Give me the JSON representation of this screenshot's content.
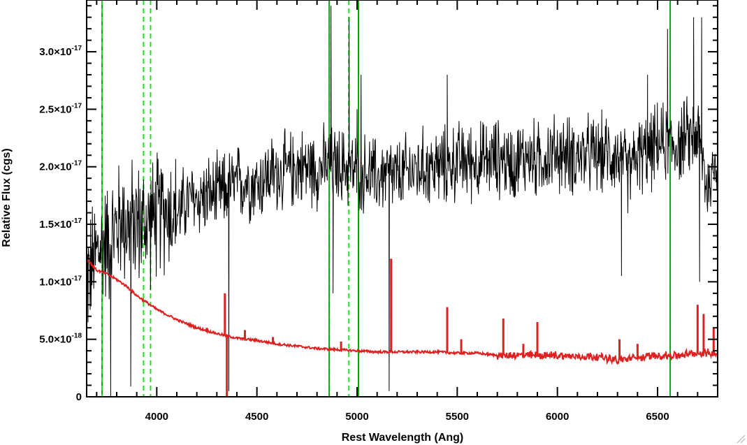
{
  "chart_data": {
    "type": "line",
    "xlabel": "Rest Wavelength (Ang)",
    "ylabel": "Relative Flux (cgs)",
    "xlim": [
      3650,
      6800
    ],
    "ylim": [
      0,
      3.45e-17
    ],
    "x_ticks": [
      {
        "value": 4000,
        "label": "4000"
      },
      {
        "value": 4500,
        "label": "4500"
      },
      {
        "value": 5000,
        "label": "5000"
      },
      {
        "value": 5500,
        "label": "5500"
      },
      {
        "value": 6000,
        "label": "6000"
      },
      {
        "value": 6500,
        "label": "6500"
      }
    ],
    "y_ticks": [
      {
        "value": 0,
        "mantissa": "0",
        "exponent": ""
      },
      {
        "value": 5e-18,
        "mantissa": "5.0×10",
        "exponent": "-18"
      },
      {
        "value": 1e-17,
        "mantissa": "1.0×10",
        "exponent": "-17"
      },
      {
        "value": 1.5e-17,
        "mantissa": "1.5×10",
        "exponent": "-17"
      },
      {
        "value": 2e-17,
        "mantissa": "2.0×10",
        "exponent": "-17"
      },
      {
        "value": 2.5e-17,
        "mantissa": "2.5×10",
        "exponent": "-17"
      },
      {
        "value": 3e-17,
        "mantissa": "3.0×10",
        "exponent": "-17"
      }
    ],
    "x_minor_step": 100,
    "y_minor_step": 1e-18,
    "grid": false,
    "legend": "none",
    "series": [
      {
        "style": "observed",
        "color": "#000000",
        "x": [
          3660,
          3700,
          3740,
          3780,
          3820,
          3860,
          3900,
          3940,
          3980,
          4020,
          4060,
          4100,
          4150,
          4200,
          4250,
          4300,
          4350,
          4400,
          4450,
          4500,
          4550,
          4600,
          4650,
          4700,
          4750,
          4800,
          4850,
          4900,
          4950,
          5000,
          5050,
          5100,
          5150,
          5200,
          5250,
          5300,
          5350,
          5400,
          5450,
          5500,
          5550,
          5600,
          5650,
          5700,
          5750,
          5800,
          5850,
          5900,
          5950,
          6000,
          6050,
          6100,
          6150,
          6200,
          6250,
          6300,
          6350,
          6400,
          6450,
          6500,
          6550,
          6600,
          6650,
          6700,
          6750,
          6800
        ],
        "y": [
          1.05e-17,
          1.25e-17,
          1.35e-17,
          1.4e-17,
          1.55e-17,
          1.5e-17,
          1.52e-17,
          1.5e-17,
          1.55e-17,
          1.6e-17,
          1.65e-17,
          1.58e-17,
          1.7e-17,
          1.72e-17,
          1.75e-17,
          1.75e-17,
          1.8e-17,
          1.85e-17,
          1.88e-17,
          1.85e-17,
          1.92e-17,
          1.95e-17,
          1.95e-17,
          2e-17,
          2e-17,
          1.98e-17,
          2.02e-17,
          2e-17,
          2e-17,
          1.95e-17,
          1.95e-17,
          1.9e-17,
          1.95e-17,
          1.9e-17,
          1.95e-17,
          1.98e-17,
          2e-17,
          2e-17,
          2e-17,
          2.05e-17,
          2.05e-17,
          2.05e-17,
          2.05e-17,
          2.08e-17,
          2.05e-17,
          2.05e-17,
          2.1e-17,
          2.05e-17,
          2.1e-17,
          2.12e-17,
          2.1e-17,
          2.1e-17,
          2.1e-17,
          2.1e-17,
          2.12e-17,
          2.1e-17,
          1.95e-17,
          2.1e-17,
          2.1e-17,
          2.2e-17,
          2.2e-17,
          2.2e-17,
          2.25e-17,
          2.3e-17,
          1.8e-17,
          2.1e-17
        ],
        "noise_amplitude": 3e-18,
        "spikes": [
          {
            "x": 3770,
            "y": -8e-19
          },
          {
            "x": 3870,
            "y": 9e-19
          },
          {
            "x": 4360,
            "y": 5e-19
          },
          {
            "x": 4870,
            "y": 3.4e-17
          },
          {
            "x": 4880,
            "y": 9e-18
          },
          {
            "x": 4960,
            "y": 3.3e-17
          },
          {
            "x": 5000,
            "y": 2.5e-17
          },
          {
            "x": 5020,
            "y": 2.8e-17
          },
          {
            "x": 5160,
            "y": 5e-19
          },
          {
            "x": 5450,
            "y": 2.8e-17
          },
          {
            "x": 6320,
            "y": 1.05e-17
          },
          {
            "x": 6450,
            "y": 2.8e-17
          },
          {
            "x": 6550,
            "y": 3.2e-17
          },
          {
            "x": 6680,
            "y": 3.3e-17
          },
          {
            "x": 6710,
            "y": 1e-17
          },
          {
            "x": 6720,
            "y": 3.3e-17
          }
        ]
      },
      {
        "style": "template",
        "color": "#e02020",
        "x": [
          3650,
          3700,
          3750,
          3800,
          3850,
          3900,
          3950,
          4000,
          4100,
          4200,
          4300,
          4400,
          4500,
          4600,
          4700,
          4800,
          4900,
          5000,
          5100,
          5200,
          5300,
          5400,
          5500,
          5600,
          5700,
          5800,
          5900,
          6000,
          6100,
          6200,
          6300,
          6400,
          6500,
          6600,
          6700,
          6800
        ],
        "y": [
          1.2e-17,
          1.1e-17,
          1.07e-17,
          1.02e-17,
          9.6e-18,
          8.8e-18,
          8.2e-18,
          7.6e-18,
          6.7e-18,
          6e-18,
          5.5e-18,
          5.1e-18,
          4.9e-18,
          4.6e-18,
          4.4e-18,
          4.2e-18,
          4.1e-18,
          4e-18,
          3.9e-18,
          3.9e-18,
          3.9e-18,
          3.9e-18,
          3.8e-18,
          3.8e-18,
          3.6e-18,
          3.6e-18,
          3.6e-18,
          3.6e-18,
          3.5e-18,
          3.5e-18,
          3.2e-18,
          3.4e-18,
          3.6e-18,
          3.6e-18,
          3.8e-18,
          3.8e-18
        ],
        "lines": [
          {
            "x": 4100,
            "y": 6.8e-18
          },
          {
            "x": 4250,
            "y": 6e-18
          },
          {
            "x": 4340,
            "y": 9e-18
          },
          {
            "x": 4350,
            "y": 0
          },
          {
            "x": 4440,
            "y": 5.8e-18
          },
          {
            "x": 4580,
            "y": 5.2e-18
          },
          {
            "x": 4920,
            "y": 4.8e-18
          },
          {
            "x": 5170,
            "y": 1.2e-17
          },
          {
            "x": 5450,
            "y": 7.8e-18
          },
          {
            "x": 5520,
            "y": 5e-18
          },
          {
            "x": 5730,
            "y": 6.8e-18
          },
          {
            "x": 5830,
            "y": 4.6e-18
          },
          {
            "x": 5900,
            "y": 6.5e-18
          },
          {
            "x": 6310,
            "y": 5e-18
          },
          {
            "x": 6400,
            "y": 4.6e-18
          },
          {
            "x": 6700,
            "y": 8e-18
          },
          {
            "x": 6730,
            "y": 7.2e-18
          },
          {
            "x": 6780,
            "y": 6e-18
          }
        ]
      }
    ],
    "vertical_markers": [
      {
        "x": 3727,
        "style": "solid",
        "color": "#00aa00"
      },
      {
        "x": 3727,
        "style": "dashed",
        "color": "#22dd22"
      },
      {
        "x": 3934,
        "style": "dashed",
        "color": "#22dd22"
      },
      {
        "x": 3969,
        "style": "dashed",
        "color": "#22dd22"
      },
      {
        "x": 4861,
        "style": "dashed",
        "color": "#22dd22"
      },
      {
        "x": 4861,
        "style": "solid",
        "color": "#00aa00"
      },
      {
        "x": 4959,
        "style": "dashed",
        "color": "#22dd22"
      },
      {
        "x": 5007,
        "style": "dashed",
        "color": "#22dd22"
      },
      {
        "x": 5007,
        "style": "solid",
        "color": "#00aa00"
      },
      {
        "x": 6563,
        "style": "dashed",
        "color": "#22dd22"
      },
      {
        "x": 6563,
        "style": "solid",
        "color": "#00aa00"
      }
    ]
  }
}
